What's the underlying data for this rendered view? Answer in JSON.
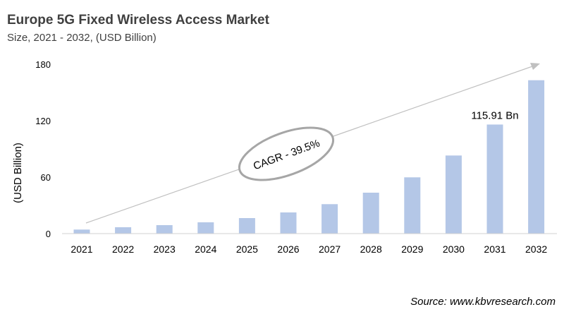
{
  "chart_data": {
    "type": "bar",
    "title": "Europe 5G Fixed Wireless Access Market",
    "subtitle": "Size, 2021 - 2032, (USD Billion)",
    "xlabel": "",
    "ylabel": "(USD Billion)",
    "ylim": [
      0,
      180
    ],
    "yticks": [
      0,
      60,
      120,
      180
    ],
    "categories": [
      "2021",
      "2022",
      "2023",
      "2024",
      "2025",
      "2026",
      "2027",
      "2028",
      "2029",
      "2030",
      "2031",
      "2032"
    ],
    "values": [
      4.3,
      6.8,
      9.0,
      12.0,
      16.5,
      22.5,
      31.3,
      43.5,
      59.8,
      83.0,
      115.91,
      163.0
    ],
    "data_label": {
      "category": "2031",
      "text": "115.91 Bn"
    },
    "annotation": "CAGR - 39.5%",
    "bar_color": "#b4c7e7",
    "grid": false,
    "source": "Source: www.kbvresearch.com"
  }
}
